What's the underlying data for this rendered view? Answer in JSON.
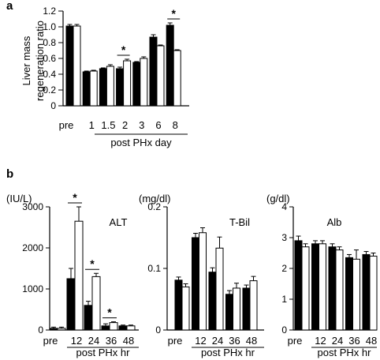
{
  "chart_data": [
    {
      "panel_label": "a",
      "type": "bar",
      "ylabel": "Liver mass regeneration ratio",
      "ylabel_lines": [
        "Liver mass",
        "regeneration ratio"
      ],
      "xlabel": "post PHx day",
      "categories": [
        "pre",
        "1",
        "1.5",
        "2",
        "3",
        "6",
        "8"
      ],
      "grouped_categories": [
        "1",
        "1.5",
        "2",
        "3",
        "6",
        "8"
      ],
      "ylim": [
        0,
        1.2
      ],
      "yticks": [
        "0",
        "0.2",
        "0.4",
        "0.6",
        "0.8",
        "1.0",
        "1.2"
      ],
      "series": [
        {
          "color": "#000000",
          "values": [
            1.01,
            0.43,
            0.47,
            0.47,
            0.55,
            0.87,
            1.02
          ],
          "errors": [
            0.02,
            0.01,
            0.01,
            0.02,
            0.01,
            0.03,
            0.03
          ]
        },
        {
          "color": "#ffffff",
          "values": [
            1.01,
            0.44,
            0.5,
            0.57,
            0.6,
            0.76,
            0.7
          ],
          "errors": [
            0.02,
            0.01,
            0.02,
            0.02,
            0.02,
            0.01,
            0.01
          ]
        }
      ],
      "significance": [
        {
          "category": "2",
          "label": "*"
        },
        {
          "category": "8",
          "label": "*"
        }
      ]
    },
    {
      "panel_label": "b",
      "type": "bar",
      "title": "ALT",
      "unit": "(IU/L)",
      "xlabel": "post PHx hr",
      "categories": [
        "pre",
        "12",
        "24",
        "36",
        "48"
      ],
      "grouped_categories": [
        "12",
        "24",
        "36",
        "48"
      ],
      "ylim": [
        0,
        3000
      ],
      "yticks": [
        "0",
        "1000",
        "2000",
        "3000"
      ],
      "series": [
        {
          "color": "#000000",
          "values": [
            40,
            1250,
            600,
            100,
            100
          ],
          "errors": [
            30,
            250,
            100,
            50,
            20
          ]
        },
        {
          "color": "#ffffff",
          "values": [
            40,
            2650,
            1300,
            180,
            100
          ],
          "errors": [
            30,
            350,
            80,
            20,
            20
          ]
        }
      ],
      "significance": [
        {
          "category": "12",
          "label": "*"
        },
        {
          "category": "24",
          "label": "*"
        },
        {
          "category": "36",
          "label": "*"
        }
      ]
    },
    {
      "type": "bar",
      "title": "T-Bil",
      "unit": "(mg/dl)",
      "xlabel": "post PHx hr",
      "categories": [
        "pre",
        "12",
        "24",
        "36",
        "48"
      ],
      "grouped_categories": [
        "12",
        "24",
        "36",
        "48"
      ],
      "ylim": [
        0,
        0.2
      ],
      "yticks": [
        "0",
        "0.1",
        "0.2"
      ],
      "series": [
        {
          "color": "#000000",
          "values": [
            0.081,
            0.15,
            0.094,
            0.058,
            0.068
          ],
          "errors": [
            0.005,
            0.007,
            0.007,
            0.006,
            0.005
          ]
        },
        {
          "color": "#ffffff",
          "values": [
            0.07,
            0.158,
            0.133,
            0.068,
            0.08
          ],
          "errors": [
            0.005,
            0.008,
            0.018,
            0.008,
            0.007
          ]
        }
      ],
      "significance": []
    },
    {
      "type": "bar",
      "title": "Alb",
      "unit": "(g/dl)",
      "xlabel": "post PHx hr",
      "categories": [
        "pre",
        "12",
        "24",
        "36",
        "48"
      ],
      "grouped_categories": [
        "12",
        "24",
        "36",
        "48"
      ],
      "ylim": [
        0,
        4
      ],
      "yticks": [
        "0",
        "1",
        "2",
        "3",
        "4"
      ],
      "series": [
        {
          "color": "#000000",
          "values": [
            2.9,
            2.8,
            2.7,
            2.35,
            2.45
          ],
          "errors": [
            0.15,
            0.1,
            0.1,
            0.1,
            0.1
          ]
        },
        {
          "color": "#ffffff",
          "values": [
            2.7,
            2.8,
            2.6,
            2.3,
            2.4
          ],
          "errors": [
            0.1,
            0.1,
            0.1,
            0.3,
            0.1
          ]
        }
      ],
      "significance": []
    }
  ]
}
